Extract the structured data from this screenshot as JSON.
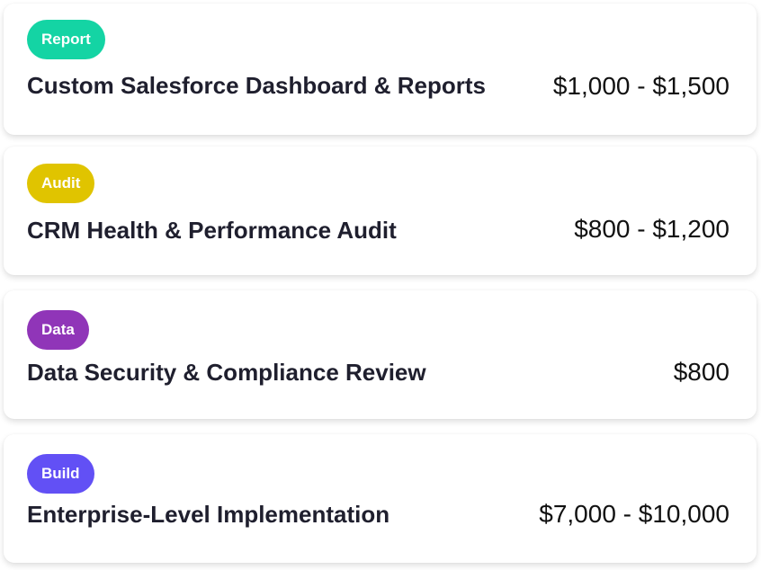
{
  "colors": {
    "report": "#14d4a4",
    "audit": "#e0c400",
    "data": "#9035b8",
    "build": "#6250f5",
    "title_text": "#1f1f2e",
    "price_text": "#111111"
  },
  "services": [
    {
      "badge": "Report",
      "title": "Custom Salesforce Dashboard & Reports",
      "price": "$1,000 - $1,500"
    },
    {
      "badge": "Audit",
      "title": "CRM Health & Performance Audit",
      "price": "$800 - $1,200"
    },
    {
      "badge": "Data",
      "title": "Data Security & Compliance Review",
      "price": "$800"
    },
    {
      "badge": "Build",
      "title": "Enterprise-Level Implementation",
      "price": "$7,000 - $10,000"
    }
  ]
}
